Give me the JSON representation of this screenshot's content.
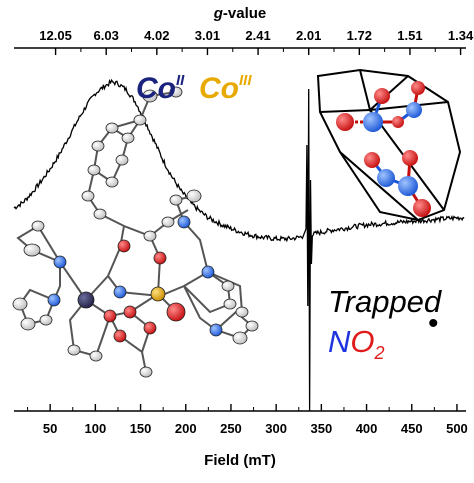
{
  "chart_data": {
    "type": "line",
    "title": "",
    "xlabel": "Field (mT)",
    "x2label": "g-value",
    "x2label_italic_part": "g",
    "x2label_rest": "-value",
    "xlim": [
      10,
      510
    ],
    "x_ticks": [
      50,
      100,
      150,
      200,
      250,
      300,
      350,
      400,
      450,
      500
    ],
    "x_tick_labels": [
      "50",
      "100",
      "150",
      "200",
      "250",
      "300",
      "350",
      "400",
      "450",
      "500"
    ],
    "g_ticks": [
      {
        "label": "12.05",
        "field": 56
      },
      {
        "label": "6.03",
        "field": 112
      },
      {
        "label": "4.02",
        "field": 168
      },
      {
        "label": "3.01",
        "field": 224
      },
      {
        "label": "2.41",
        "field": 280
      },
      {
        "label": "2.01",
        "field": 336
      },
      {
        "label": "1.72",
        "field": 392
      },
      {
        "label": "1.51",
        "field": 448
      },
      {
        "label": "1.34",
        "field": 504
      }
    ],
    "y_axis": "EPR intensity (arbitrary, unlabeled)",
    "series": [
      {
        "name": "",
        "color": "#000000",
        "points": [
          [
            10,
            0.1
          ],
          [
            20,
            0.14
          ],
          [
            30,
            0.21
          ],
          [
            40,
            0.29
          ],
          [
            50,
            0.38
          ],
          [
            60,
            0.48
          ],
          [
            70,
            0.6
          ],
          [
            80,
            0.72
          ],
          [
            90,
            0.83
          ],
          [
            100,
            0.92
          ],
          [
            110,
            0.97
          ],
          [
            118,
            1.0
          ],
          [
            125,
            0.99
          ],
          [
            135,
            0.94
          ],
          [
            145,
            0.85
          ],
          [
            155,
            0.72
          ],
          [
            165,
            0.58
          ],
          [
            175,
            0.44
          ],
          [
            185,
            0.32
          ],
          [
            195,
            0.22
          ],
          [
            205,
            0.14
          ],
          [
            215,
            0.08
          ],
          [
            225,
            0.03
          ],
          [
            240,
            -0.02
          ],
          [
            255,
            -0.06
          ],
          [
            270,
            -0.09
          ],
          [
            285,
            -0.11
          ],
          [
            300,
            -0.12
          ],
          [
            315,
            -0.12
          ],
          [
            325,
            -0.11
          ],
          [
            330,
            -0.1
          ],
          [
            333,
            -0.05
          ],
          [
            334,
            0.55
          ],
          [
            335,
            -0.6
          ],
          [
            336,
            0.95
          ],
          [
            337,
            -1.35
          ],
          [
            338,
            0.3
          ],
          [
            339,
            -0.3
          ],
          [
            340,
            -0.09
          ],
          [
            345,
            -0.08
          ],
          [
            360,
            -0.06
          ],
          [
            380,
            -0.04
          ],
          [
            400,
            -0.02
          ],
          [
            420,
            -0.01
          ],
          [
            440,
            0.0
          ],
          [
            460,
            0.01
          ],
          [
            480,
            0.02
          ],
          [
            500,
            0.03
          ],
          [
            508,
            0.03
          ]
        ]
      }
    ],
    "annotations": [
      {
        "id": "co2",
        "text": "Co",
        "sup": "II",
        "color": "#1a237e"
      },
      {
        "id": "co3",
        "text": "Co",
        "sup": "III",
        "color": "#e8a900"
      },
      {
        "id": "trapped",
        "text": "Trapped",
        "color": "#000000"
      },
      {
        "id": "no2_n",
        "text": "N",
        "color": "#1f33e0"
      },
      {
        "id": "no2_o",
        "text": "O",
        "color": "#e01b1b"
      },
      {
        "id": "no2_sub",
        "text": "2",
        "color": "#e01b1b"
      },
      {
        "id": "no2_dot",
        "text": "•",
        "color": "#000000"
      }
    ],
    "grid": false,
    "legend": "none",
    "insets": [
      "molecular structure (ORTEP) of Co(II)/Co(III) complex",
      "NO2 trapped in cage"
    ]
  },
  "colors": {
    "cobalt_ii": "#2e2e5e",
    "cobalt_iii": "#e8a900",
    "nitrogen": "#1f33e0",
    "oxygen": "#d11a1a",
    "carbon": "#f2f2f2",
    "cage_edge": "#000000"
  }
}
